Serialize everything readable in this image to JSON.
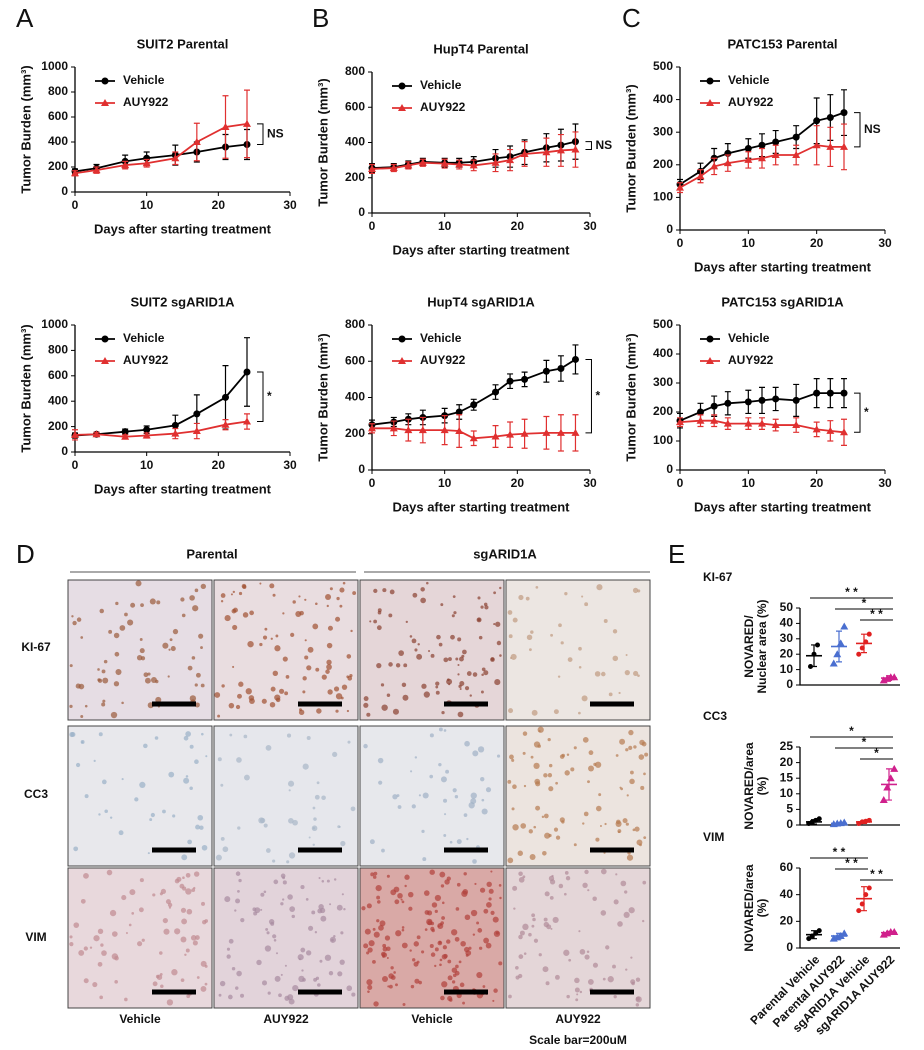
{
  "panels": [
    "A",
    "B",
    "C",
    "D",
    "E"
  ],
  "ihc": {
    "groups": [
      "Parental",
      "sgARID1A"
    ],
    "rows": [
      "KI-67",
      "CC3",
      "VIM"
    ],
    "columns": [
      "Vehicle",
      "AUY922",
      "Vehicle",
      "AUY922"
    ],
    "scale_note": "Scale bar=200uM"
  },
  "chart_data": [
    {
      "type": "line",
      "title": "SUIT2 Parental",
      "xlabel": "Days after starting treatment",
      "ylabel": "Tumor Burden (mm³)",
      "x": [
        0,
        3,
        7,
        10,
        14,
        17,
        21,
        24
      ],
      "xlim": [
        0,
        30
      ],
      "xticks": [
        0,
        10,
        20,
        30
      ],
      "ylim": [
        0,
        1000
      ],
      "yticks": [
        0,
        200,
        400,
        600,
        800,
        1000
      ],
      "series": [
        {
          "name": "Vehicle",
          "color": "#000000",
          "marker": "circle",
          "values": [
            165,
            190,
            245,
            270,
            295,
            320,
            360,
            380
          ],
          "errors": [
            20,
            30,
            50,
            50,
            80,
            80,
            100,
            120
          ]
        },
        {
          "name": "AUY922",
          "color": "#e03030",
          "marker": "triangle",
          "values": [
            150,
            175,
            215,
            230,
            270,
            400,
            520,
            545
          ],
          "errors": [
            20,
            25,
            30,
            30,
            50,
            150,
            250,
            270
          ]
        }
      ],
      "annotation": "NS"
    },
    {
      "type": "line",
      "title": "HupT4 Parental",
      "xlabel": "Days after starting treatment",
      "ylabel": "Tumor Burden (mm³)",
      "x": [
        0,
        3,
        5,
        7,
        10,
        12,
        14,
        17,
        19,
        21,
        24,
        26,
        28
      ],
      "xlim": [
        0,
        30
      ],
      "xticks": [
        0,
        10,
        20,
        30
      ],
      "ylim": [
        0,
        800
      ],
      "yticks": [
        0,
        200,
        400,
        600,
        800
      ],
      "series": [
        {
          "name": "Vehicle",
          "color": "#000000",
          "marker": "circle",
          "values": [
            255,
            260,
            275,
            290,
            285,
            285,
            290,
            310,
            320,
            345,
            370,
            385,
            405
          ],
          "errors": [
            25,
            20,
            20,
            20,
            25,
            25,
            30,
            50,
            60,
            70,
            80,
            90,
            100
          ]
        },
        {
          "name": "AUY922",
          "color": "#e03030",
          "marker": "triangle",
          "values": [
            250,
            255,
            270,
            285,
            280,
            275,
            270,
            285,
            300,
            335,
            345,
            355,
            360
          ],
          "errors": [
            25,
            20,
            20,
            20,
            25,
            25,
            30,
            50,
            60,
            70,
            80,
            90,
            100
          ]
        }
      ],
      "annotation": "NS"
    },
    {
      "type": "line",
      "title": "PATC153 Parental",
      "xlabel": "Days after starting treatment",
      "ylabel": "Tumor Burden (mm³)",
      "x": [
        0,
        3,
        5,
        7,
        10,
        12,
        14,
        17,
        20,
        22,
        24
      ],
      "xlim": [
        0,
        30
      ],
      "xticks": [
        0,
        10,
        20,
        30
      ],
      "ylim": [
        0,
        500
      ],
      "yticks": [
        0,
        100,
        200,
        300,
        400,
        500
      ],
      "series": [
        {
          "name": "Vehicle",
          "color": "#000000",
          "marker": "circle",
          "values": [
            140,
            180,
            220,
            235,
            250,
            260,
            270,
            285,
            335,
            345,
            360
          ],
          "errors": [
            15,
            25,
            30,
            30,
            30,
            35,
            35,
            35,
            70,
            70,
            70
          ]
        },
        {
          "name": "AUY922",
          "color": "#e03030",
          "marker": "triangle",
          "values": [
            130,
            165,
            195,
            205,
            215,
            220,
            230,
            230,
            260,
            255,
            255
          ],
          "errors": [
            15,
            20,
            25,
            25,
            25,
            30,
            30,
            30,
            60,
            60,
            70
          ]
        }
      ],
      "annotation": "NS"
    },
    {
      "type": "line",
      "title": "SUIT2 sgARID1A",
      "xlabel": "Days after starting treatment",
      "ylabel": "Tumor Burden (mm³)",
      "x": [
        0,
        3,
        7,
        10,
        14,
        17,
        21,
        24
      ],
      "xlim": [
        0,
        30
      ],
      "xticks": [
        0,
        10,
        20,
        30
      ],
      "ylim": [
        0,
        1000
      ],
      "yticks": [
        0,
        200,
        400,
        600,
        800,
        1000
      ],
      "series": [
        {
          "name": "Vehicle",
          "color": "#000000",
          "marker": "circle",
          "values": [
            130,
            140,
            160,
            175,
            210,
            300,
            430,
            630
          ],
          "errors": [
            20,
            15,
            20,
            30,
            80,
            150,
            250,
            270
          ]
        },
        {
          "name": "AUY922",
          "color": "#e03030",
          "marker": "triangle",
          "values": [
            135,
            140,
            120,
            130,
            145,
            165,
            215,
            240
          ],
          "errors": [
            40,
            15,
            15,
            20,
            40,
            60,
            40,
            60
          ]
        }
      ],
      "annotation": "*"
    },
    {
      "type": "line",
      "title": "HupT4 sgARID1A",
      "xlabel": "Days after starting treatment",
      "ylabel": "Tumor Burden (mm³)",
      "x": [
        0,
        3,
        5,
        7,
        10,
        12,
        14,
        17,
        19,
        21,
        24,
        26,
        28
      ],
      "xlim": [
        0,
        30
      ],
      "xticks": [
        0,
        10,
        20,
        30
      ],
      "ylim": [
        0,
        800
      ],
      "yticks": [
        0,
        200,
        400,
        600,
        800
      ],
      "series": [
        {
          "name": "Vehicle",
          "color": "#000000",
          "marker": "circle",
          "values": [
            250,
            265,
            280,
            290,
            300,
            320,
            360,
            430,
            490,
            500,
            545,
            560,
            610
          ],
          "errors": [
            25,
            25,
            30,
            40,
            40,
            40,
            30,
            40,
            40,
            40,
            60,
            70,
            80
          ]
        },
        {
          "name": "AUY922",
          "color": "#e03030",
          "marker": "triangle",
          "values": [
            230,
            230,
            220,
            220,
            220,
            215,
            175,
            185,
            195,
            200,
            205,
            205,
            205
          ],
          "errors": [
            25,
            40,
            60,
            70,
            80,
            90,
            40,
            60,
            70,
            80,
            90,
            100,
            100
          ]
        }
      ],
      "annotation": "*"
    },
    {
      "type": "line",
      "title": "PATC153 sgARID1A",
      "xlabel": "Days after starting treatment",
      "ylabel": "Tumor Burden (mm³)",
      "x": [
        0,
        3,
        5,
        7,
        10,
        12,
        14,
        17,
        20,
        22,
        24
      ],
      "xlim": [
        0,
        30
      ],
      "xticks": [
        0,
        10,
        20,
        30
      ],
      "ylim": [
        0,
        500
      ],
      "yticks": [
        0,
        100,
        200,
        300,
        400,
        500
      ],
      "series": [
        {
          "name": "Vehicle",
          "color": "#000000",
          "marker": "circle",
          "values": [
            170,
            200,
            220,
            230,
            235,
            240,
            245,
            240,
            265,
            265,
            265
          ],
          "errors": [
            25,
            30,
            35,
            40,
            40,
            45,
            40,
            55,
            50,
            50,
            50
          ]
        },
        {
          "name": "AUY922",
          "color": "#e03030",
          "marker": "triangle",
          "values": [
            165,
            170,
            170,
            160,
            160,
            160,
            155,
            155,
            140,
            135,
            130
          ],
          "errors": [
            15,
            20,
            20,
            20,
            20,
            20,
            20,
            25,
            25,
            35,
            45
          ]
        }
      ],
      "annotation": "*"
    },
    {
      "type": "dot",
      "title": "KI-67",
      "ylabel": [
        "NOVARED/",
        "Nuclear area (%)"
      ],
      "ylim": [
        0,
        50
      ],
      "yticks": [
        0,
        10,
        20,
        30,
        40,
        50
      ],
      "groups": [
        {
          "color": "#000000",
          "values": [
            12,
            20,
            26
          ],
          "mean": 19,
          "sd": 7
        },
        {
          "color": "#4a6fd0",
          "values": [
            14,
            20,
            27,
            38
          ],
          "mean": 25,
          "sd": 10
        },
        {
          "color": "#e02020",
          "values": [
            20,
            24,
            28,
            33
          ],
          "mean": 27,
          "sd": 6
        },
        {
          "color": "#d0208c",
          "values": [
            3,
            4,
            5,
            5
          ],
          "mean": 4.5,
          "sd": 1.5
        }
      ],
      "comparisons": [
        {
          "from": 0,
          "to": 3,
          "label": "* *"
        },
        {
          "from": 1,
          "to": 3,
          "label": "*"
        },
        {
          "from": 2,
          "to": 3,
          "label": "* *"
        }
      ]
    },
    {
      "type": "dot",
      "title": "CC3",
      "ylabel": [
        "NOVARED/area",
        "(%)"
      ],
      "ylim": [
        0,
        25
      ],
      "yticks": [
        0,
        5,
        10,
        15,
        20,
        25
      ],
      "groups": [
        {
          "color": "#000000",
          "values": [
            0.5,
            1,
            1.5,
            2
          ],
          "mean": 1,
          "sd": 0.7
        },
        {
          "color": "#4a6fd0",
          "values": [
            0.3,
            0.5,
            0.6,
            0.8
          ],
          "mean": 0.5,
          "sd": 0.3
        },
        {
          "color": "#e02020",
          "values": [
            0.5,
            1,
            1.2,
            1.5
          ],
          "mean": 1,
          "sd": 0.5
        },
        {
          "color": "#d0208c",
          "values": [
            8,
            12,
            15,
            18
          ],
          "mean": 13,
          "sd": 5
        }
      ],
      "comparisons": [
        {
          "from": 0,
          "to": 3,
          "label": "*"
        },
        {
          "from": 1,
          "to": 3,
          "label": "*"
        },
        {
          "from": 2,
          "to": 3,
          "label": "*"
        }
      ]
    },
    {
      "type": "dot",
      "title": "VIM",
      "ylabel": [
        "NOVARED/area",
        "(%)"
      ],
      "ylim": [
        0,
        60
      ],
      "yticks": [
        0,
        20,
        40,
        60
      ],
      "categories": [
        "Parental Vehicle",
        "Parental AUY922",
        "sgARID1A Vehicle",
        "sgARID1A AUY922"
      ],
      "groups": [
        {
          "color": "#000000",
          "values": [
            7,
            9,
            11,
            13
          ],
          "mean": 10,
          "sd": 3
        },
        {
          "color": "#4a6fd0",
          "values": [
            7,
            8,
            9,
            11
          ],
          "mean": 9,
          "sd": 2
        },
        {
          "color": "#e02020",
          "values": [
            28,
            33,
            40,
            45
          ],
          "mean": 37,
          "sd": 9
        },
        {
          "color": "#d0208c",
          "values": [
            10,
            11,
            12,
            12
          ],
          "mean": 11.5,
          "sd": 1
        }
      ],
      "comparisons": [
        {
          "from": 0,
          "to": 2,
          "label": "* *"
        },
        {
          "from": 1,
          "to": 2,
          "label": "* *"
        },
        {
          "from": 2,
          "to": 3,
          "label": "* *"
        }
      ]
    }
  ]
}
